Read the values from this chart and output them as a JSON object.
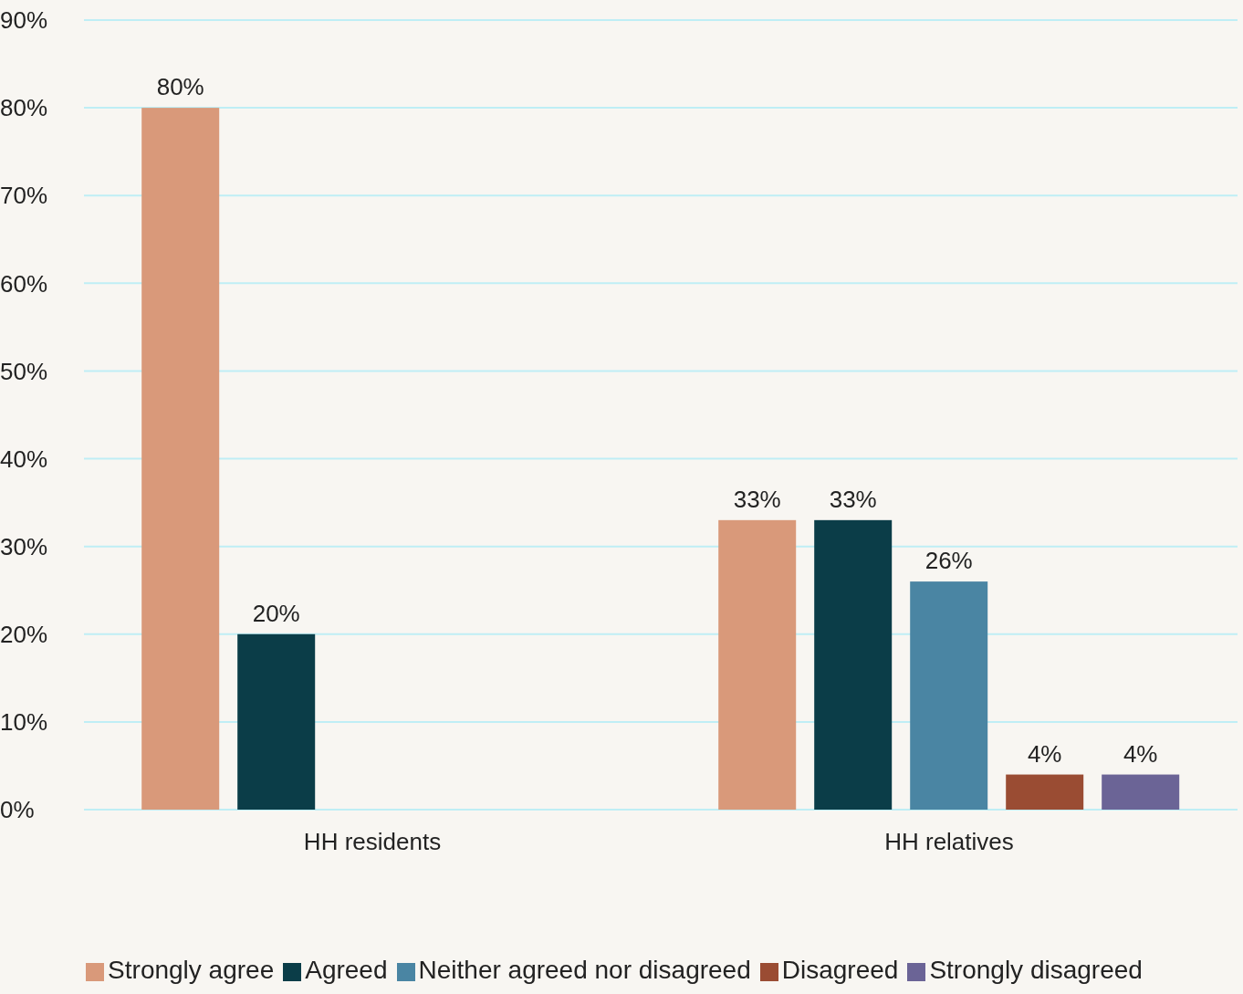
{
  "chart_data": {
    "type": "bar",
    "categories": [
      "HH residents",
      "HH relatives"
    ],
    "series": [
      {
        "name": "Strongly agree",
        "color": "#d9997a",
        "values": [
          80,
          33
        ],
        "value_labels": [
          "80%",
          "33%"
        ]
      },
      {
        "name": "Agreed",
        "color": "#0b3d48",
        "values": [
          20,
          33
        ],
        "value_labels": [
          "20%",
          "33%"
        ]
      },
      {
        "name": "Neither agreed nor disagreed",
        "color": "#4a85a3",
        "values": [
          null,
          26
        ],
        "value_labels": [
          null,
          "26%"
        ]
      },
      {
        "name": "Disagreed",
        "color": "#9a4c33",
        "values": [
          null,
          4
        ],
        "value_labels": [
          null,
          "4%"
        ]
      },
      {
        "name": "Strongly disagreed",
        "color": "#6b6496",
        "values": [
          null,
          4
        ],
        "value_labels": [
          null,
          "4%"
        ]
      }
    ],
    "ylim": [
      0,
      90
    ],
    "yticks": [
      {
        "value": 0,
        "label": "0%"
      },
      {
        "value": 10,
        "label": "10%"
      },
      {
        "value": 20,
        "label": "20%"
      },
      {
        "value": 30,
        "label": "30%"
      },
      {
        "value": 40,
        "label": "40%"
      },
      {
        "value": 50,
        "label": "50%"
      },
      {
        "value": 60,
        "label": "60%"
      },
      {
        "value": 70,
        "label": "70%"
      },
      {
        "value": 80,
        "label": "80%"
      },
      {
        "value": 90,
        "label": "90%"
      }
    ],
    "grid": "y",
    "legend": "bottom"
  }
}
